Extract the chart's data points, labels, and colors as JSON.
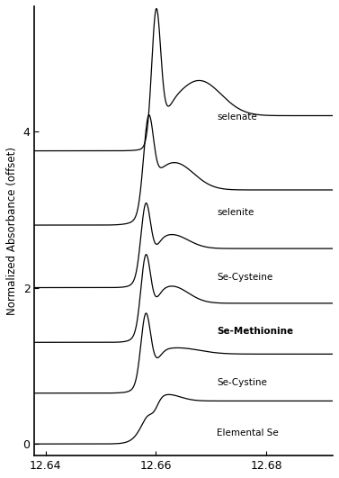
{
  "title": "",
  "xlabel": "",
  "ylabel": "Normalized Absorbance (offset)",
  "xlim": [
    12.638,
    12.692
  ],
  "ylim": [
    -0.15,
    5.6
  ],
  "xticks": [
    12.64,
    12.66,
    12.68
  ],
  "yticks": [
    0,
    2,
    4
  ],
  "compounds": [
    "Elemental Se",
    "Se-Cystine",
    "Se-Methionine",
    "Se-Cysteine",
    "selenite",
    "selenate"
  ],
  "offsets": [
    0.0,
    0.65,
    1.3,
    2.0,
    2.8,
    3.75
  ],
  "edge_energy": 12.6578,
  "background_color": "#ffffff",
  "line_color": "#000000"
}
